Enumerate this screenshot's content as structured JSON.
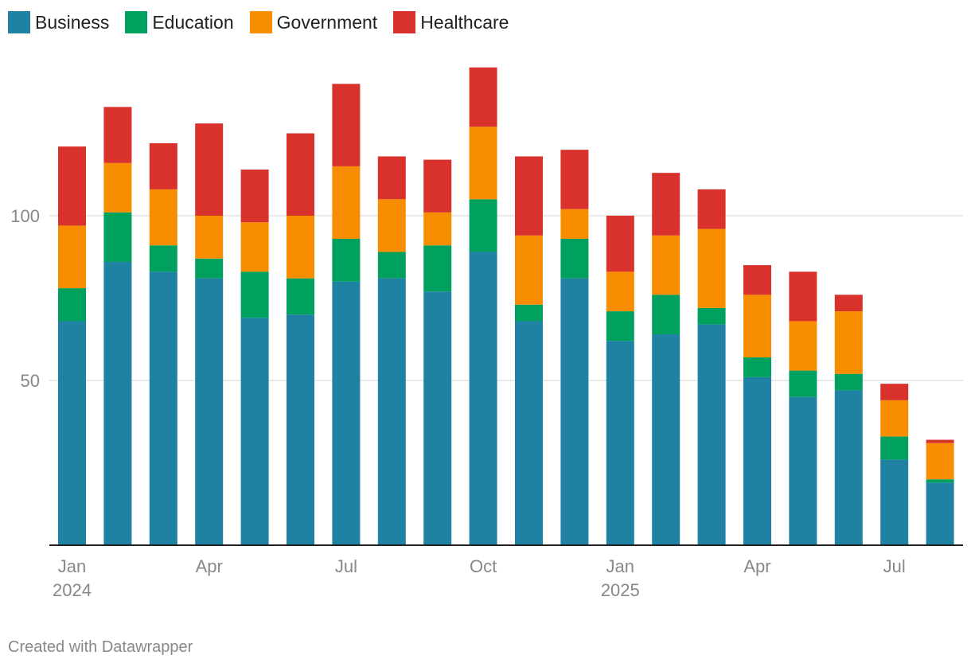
{
  "chart_data": {
    "type": "bar",
    "stacked": true,
    "categories": [
      "Jan 2024",
      "Feb 2024",
      "Mar 2024",
      "Apr 2024",
      "May 2024",
      "Jun 2024",
      "Jul 2024",
      "Aug 2024",
      "Sep 2024",
      "Oct 2024",
      "Nov 2024",
      "Dec 2024",
      "Jan 2025",
      "Feb 2025",
      "Mar 2025",
      "Apr 2025",
      "May 2025",
      "Jun 2025",
      "Jul 2025",
      "Aug 2025"
    ],
    "series": [
      {
        "name": "Business",
        "color": "#1f82a2",
        "values": [
          68,
          86,
          83,
          81,
          69,
          70,
          80,
          81,
          77,
          89,
          68,
          81,
          62,
          64,
          67,
          51,
          45,
          47,
          26,
          19
        ]
      },
      {
        "name": "Education",
        "color": "#00a05f",
        "values": [
          10,
          15,
          8,
          6,
          14,
          11,
          13,
          8,
          14,
          16,
          5,
          12,
          9,
          12,
          5,
          6,
          8,
          5,
          7,
          1
        ]
      },
      {
        "name": "Government",
        "color": "#f98d00",
        "values": [
          19,
          15,
          17,
          13,
          15,
          19,
          22,
          16,
          10,
          22,
          21,
          9,
          12,
          18,
          24,
          19,
          15,
          19,
          11,
          11
        ]
      },
      {
        "name": "Healthcare",
        "color": "#d9312b",
        "values": [
          24,
          17,
          14,
          28,
          16,
          25,
          25,
          13,
          16,
          18,
          24,
          18,
          17,
          19,
          12,
          9,
          15,
          5,
          5,
          1
        ]
      }
    ],
    "ylim": [
      0,
      150
    ],
    "yticks": [
      50,
      100
    ],
    "ytick_labels": [
      "50",
      "100"
    ],
    "xticks": [
      {
        "index": 0,
        "label": "Jan",
        "sublabel": "2024"
      },
      {
        "index": 3,
        "label": "Apr",
        "sublabel": ""
      },
      {
        "index": 6,
        "label": "Jul",
        "sublabel": ""
      },
      {
        "index": 9,
        "label": "Oct",
        "sublabel": ""
      },
      {
        "index": 12,
        "label": "Jan",
        "sublabel": "2025"
      },
      {
        "index": 15,
        "label": "Apr",
        "sublabel": ""
      },
      {
        "index": 18,
        "label": "Jul",
        "sublabel": ""
      }
    ],
    "grid": true,
    "legend": "top-left"
  },
  "legend": [
    {
      "label": "Business",
      "color": "#1f82a2"
    },
    {
      "label": "Education",
      "color": "#00a05f"
    },
    {
      "label": "Government",
      "color": "#f98d00"
    },
    {
      "label": "Healthcare",
      "color": "#d9312b"
    }
  ],
  "footer": {
    "credit": "Created with Datawrapper"
  }
}
